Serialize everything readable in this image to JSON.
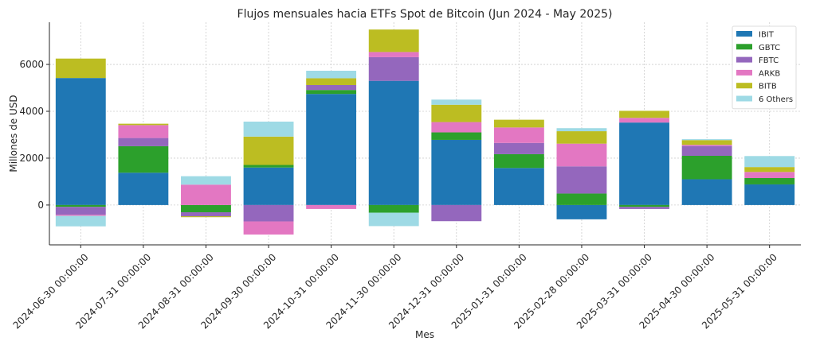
{
  "chart_data": {
    "type": "bar",
    "stacked": true,
    "title": "Flujos mensuales hacia ETFs Spot de Bitcoin (Jun 2024 - May 2025)",
    "xlabel": "Mes",
    "ylabel": "Millones de USD",
    "ylim": [
      -1700,
      7800
    ],
    "yticks": [
      0,
      2000,
      4000,
      6000
    ],
    "grid": true,
    "legend_position": "top-right",
    "categories": [
      "2024-06-30 00:00:00",
      "2024-07-31 00:00:00",
      "2024-08-31 00:00:00",
      "2024-09-30 00:00:00",
      "2024-10-31 00:00:00",
      "2024-11-30 00:00:00",
      "2024-12-31 00:00:00",
      "2025-01-31 00:00:00",
      "2025-02-28 00:00:00",
      "2025-03-31 00:00:00",
      "2025-04-30 00:00:00",
      "2025-05-31 00:00:00"
    ],
    "series": [
      {
        "name": "IBIT",
        "color": "#1f77b4",
        "values": [
          5420,
          1380,
          0,
          1600,
          4740,
          5300,
          2780,
          1580,
          -610,
          3520,
          1100,
          880
        ]
      },
      {
        "name": "GBTC",
        "color": "#2ca02c",
        "values": [
          -80,
          1130,
          -310,
          110,
          170,
          -330,
          320,
          590,
          490,
          -80,
          1000,
          270
        ]
      },
      {
        "name": "FBTC",
        "color": "#9467bd",
        "values": [
          -330,
          350,
          -170,
          -700,
          210,
          1010,
          -690,
          480,
          1160,
          -90,
          420,
          0
        ]
      },
      {
        "name": "ARKB",
        "color": "#e377c2",
        "values": [
          -50,
          550,
          870,
          -560,
          -170,
          220,
          440,
          660,
          970,
          200,
          50,
          260
        ]
      },
      {
        "name": "BITB",
        "color": "#bcbd22",
        "values": [
          830,
          60,
          -40,
          1210,
          290,
          960,
          740,
          330,
          530,
          300,
          200,
          210
        ]
      },
      {
        "name": "6 Others",
        "color": "#9edae5",
        "values": [
          -450,
          0,
          360,
          640,
          320,
          -570,
          220,
          0,
          130,
          0,
          40,
          470
        ]
      }
    ]
  }
}
